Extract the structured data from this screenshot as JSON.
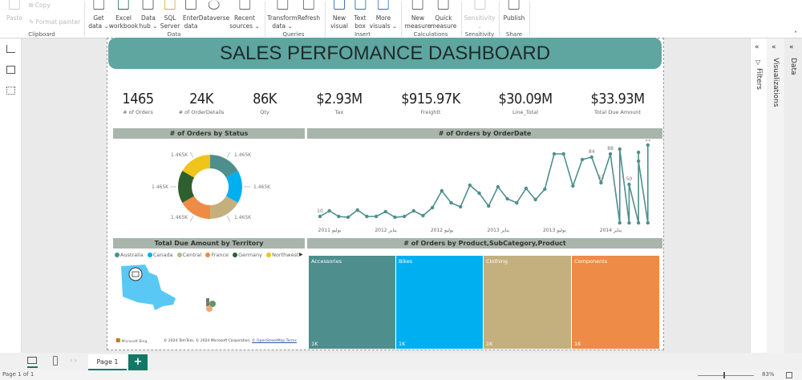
{
  "ribbon": {
    "groups": [
      {
        "label": "Clipboard",
        "items": [
          "Paste",
          "Copy",
          "Format painter"
        ]
      },
      {
        "label": "Data",
        "items": [
          "Get data",
          "Excel workbook",
          "Data hub",
          "SQL Server",
          "Enter data",
          "Dataverse",
          "Recent sources"
        ]
      },
      {
        "label": "Queries",
        "items": [
          "Transform data",
          "Refresh"
        ]
      },
      {
        "label": "Insert",
        "items": [
          "New visual",
          "Text box",
          "More visuals"
        ]
      },
      {
        "label": "Calculations",
        "items": [
          "New measure",
          "Quick measure"
        ]
      },
      {
        "label": "Sensitivity",
        "items": [
          "Sensitivity"
        ]
      },
      {
        "label": "Share",
        "items": [
          "Publish"
        ]
      }
    ],
    "buttons": {
      "paste": "Paste",
      "copy": "Copy",
      "format_painter": "Format painter",
      "get_data_1": "Get",
      "get_data_2": "data ⌄",
      "excel_1": "Excel",
      "excel_2": "workbook",
      "datahub_1": "Data",
      "datahub_2": "hub ⌄",
      "sql_1": "SQL",
      "sql_2": "Server",
      "enter_1": "Enter",
      "enter_2": "data",
      "dataverse": "Dataverse",
      "recent_1": "Recent",
      "recent_2": "sources ⌄",
      "transform_1": "Transform",
      "transform_2": "data ⌄",
      "refresh": "Refresh",
      "newvisual_1": "New",
      "newvisual_2": "visual",
      "textbox_1": "Text",
      "textbox_2": "box",
      "more_1": "More",
      "more_2": "visuals ⌄",
      "newmeasure_1": "New",
      "newmeasure_2": "measure",
      "quick_1": "Quick",
      "quick_2": "measure",
      "sensitivity_1": "Sensitivity",
      "sensitivity_2": "⌄",
      "publish": "Publish"
    }
  },
  "report": {
    "title": "SALES PERFOMANCE DASHBOARD",
    "kpis": [
      {
        "value": "1465",
        "label": "# of Orders"
      },
      {
        "value": "24K",
        "label": "# of OrderDetails"
      },
      {
        "value": "86K",
        "label": "Qty"
      },
      {
        "value": "$2.93M",
        "label": "Tax"
      },
      {
        "value": "$915.97K",
        "label": "Freightt"
      },
      {
        "value": "$30.09M",
        "label": "Line_Total"
      },
      {
        "value": "$33.93M",
        "label": "Total Due Amount"
      }
    ],
    "colors": {
      "teal": "#4e8f8d",
      "blue": "#00aff0",
      "tan": "#c4b07e",
      "orange": "#ed8b47",
      "darkgreen": "#2e5f2e",
      "yellow": "#efc41c",
      "header": "#a9b5ab",
      "banner": "#5fa5a0"
    },
    "map": {
      "title": "Total Due Amount by Territory",
      "legend": [
        {
          "name": "Australia",
          "color": "#4e8f8d"
        },
        {
          "name": "Canada",
          "color": "#00aff0"
        },
        {
          "name": "Central",
          "color": "#a9c08a"
        },
        {
          "name": "France",
          "color": "#ed8b47"
        },
        {
          "name": "Germany",
          "color": "#2e5f2e"
        },
        {
          "name": "Northwest",
          "color": "#efc41c"
        }
      ],
      "logo": "Microsoft Bing",
      "attribution": "© 2024 TomTom, © 2024 Microsoft Corporation,",
      "attribution_link": "© OpenStreetMap Terms"
    }
  },
  "chart_data": [
    {
      "type": "pie",
      "title": "# of Orders by Status",
      "donut": true,
      "slices": [
        {
          "value": 1465,
          "label": "1.465K",
          "color": "#4e8f8d"
        },
        {
          "value": 1465,
          "label": "1.465K",
          "color": "#00aff0"
        },
        {
          "value": 1465,
          "label": "1.465K",
          "color": "#c4b07e"
        },
        {
          "value": 1465,
          "label": "1.465K",
          "color": "#ed8b47"
        },
        {
          "value": 1465,
          "label": "1.465K",
          "color": "#2e5f2e"
        },
        {
          "value": 1465,
          "label": "1.465K",
          "color": "#efc41c"
        }
      ]
    },
    {
      "type": "line",
      "title": "# of Orders by OrderDate",
      "color": "#4e8f8d",
      "x_ticks": [
        "يوليو 2011",
        "يناير 2012",
        "يوليو 2012",
        "يناير 2013",
        "يوليو 2013",
        "يناير 2014"
      ],
      "points": [
        [
          "2011-06",
          10
        ],
        [
          "2011-07",
          17
        ],
        [
          "2011-08",
          10
        ],
        [
          "2011-09",
          9
        ],
        [
          "2011-10",
          18
        ],
        [
          "2011-11",
          10
        ],
        [
          "2011-12",
          10
        ],
        [
          "2012-01",
          16
        ],
        [
          "2012-02",
          9
        ],
        [
          "2012-03",
          10
        ],
        [
          "2012-04",
          17
        ],
        [
          "2012-05",
          11
        ],
        [
          "2012-06",
          21
        ],
        [
          "2012-07",
          42
        ],
        [
          "2012-08",
          27
        ],
        [
          "2012-09",
          22
        ],
        [
          "2012-10",
          49
        ],
        [
          "2012-11",
          39
        ],
        [
          "2012-12",
          23
        ],
        [
          "2013-01",
          47
        ],
        [
          "2013-02",
          32
        ],
        [
          "2013-03",
          27
        ],
        [
          "2013-04",
          45
        ],
        [
          "2013-05",
          31
        ],
        [
          "2013-06",
          44
        ],
        [
          "2013-07",
          88
        ],
        [
          "2013-08",
          88
        ],
        [
          "2013-09",
          48
        ],
        [
          "2013-10",
          81
        ],
        [
          "2013-11",
          84
        ],
        [
          "2013-12",
          52
        ],
        [
          "2014-01",
          88
        ],
        [
          "2014-02",
          2
        ],
        [
          "2014-02",
          94
        ],
        [
          "2014-03",
          2
        ],
        [
          "2014-03",
          50
        ],
        [
          "2014-04",
          2
        ],
        [
          "2014-04",
          90
        ],
        [
          "2014-04",
          79
        ],
        [
          "2014-05",
          2
        ],
        [
          "2014-05",
          99
        ]
      ],
      "data_labels": [
        {
          "x": "2011-06",
          "text": "10"
        },
        {
          "x": "2013-11",
          "text": "84"
        },
        {
          "x": "2014-01",
          "text": "88"
        },
        {
          "x": "2013-12",
          "text": "52"
        },
        {
          "x": "2014-03",
          "text": "50"
        },
        {
          "x": "2014-05",
          "text": "99"
        }
      ],
      "ylim": [
        0,
        100
      ]
    },
    {
      "type": "bar",
      "subtype": "treemap",
      "title": "# of Orders by Product,SubCategory,Product",
      "categories": [
        "Accessories",
        "Bikes",
        "Clothing",
        "Components"
      ],
      "value_labels": [
        "1K",
        "1K",
        "1K",
        "1K"
      ],
      "colors": [
        "#4e8f8d",
        "#00aff0",
        "#c4b07e",
        "#ed8b47"
      ]
    }
  ],
  "panes": {
    "filters": "Filters",
    "visualizations": "Visualizations",
    "data": "Data"
  },
  "tabs": {
    "page1": "Page 1",
    "add": "+"
  },
  "status": {
    "page": "Page 1 of 1",
    "zoom": "83%"
  }
}
